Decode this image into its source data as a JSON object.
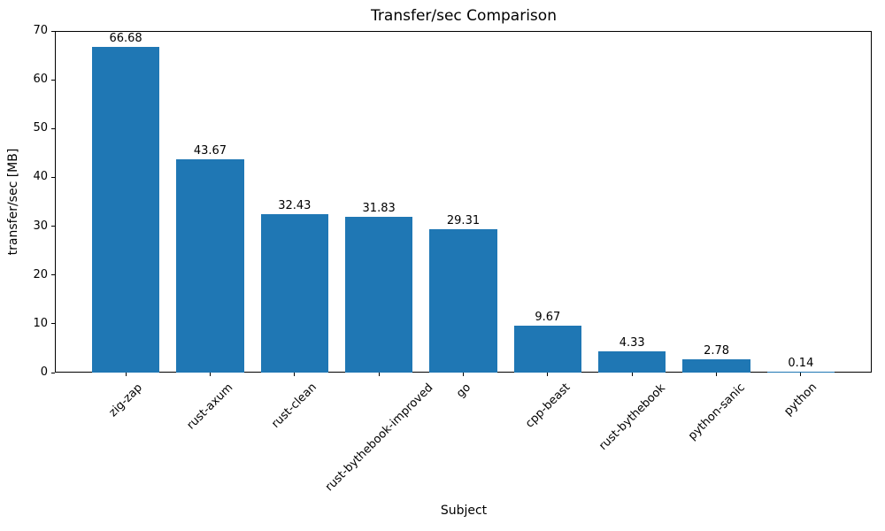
{
  "chart_data": {
    "type": "bar",
    "title": "Transfer/sec Comparison",
    "xlabel": "Subject",
    "ylabel": "transfer/sec [MB]",
    "categories": [
      "zig-zap",
      "rust-axum",
      "rust-clean",
      "rust-bythebook-improved",
      "go",
      "cpp-beast",
      "rust-bythebook",
      "python-sanic",
      "python"
    ],
    "values": [
      66.68,
      43.67,
      32.43,
      31.83,
      29.31,
      9.67,
      4.33,
      2.78,
      0.14
    ],
    "bar_value_labels": [
      "66.68",
      "43.67",
      "32.43",
      "31.83",
      "29.31",
      "9.67",
      "4.33",
      "2.78",
      "0.14"
    ],
    "ylim": [
      0,
      70
    ],
    "yticks": [
      0,
      10,
      20,
      30,
      40,
      50,
      60,
      70
    ],
    "bar_color": "#1f77b4",
    "grid": false,
    "legend_position": "none",
    "x_tick_rotation_deg": 45
  }
}
